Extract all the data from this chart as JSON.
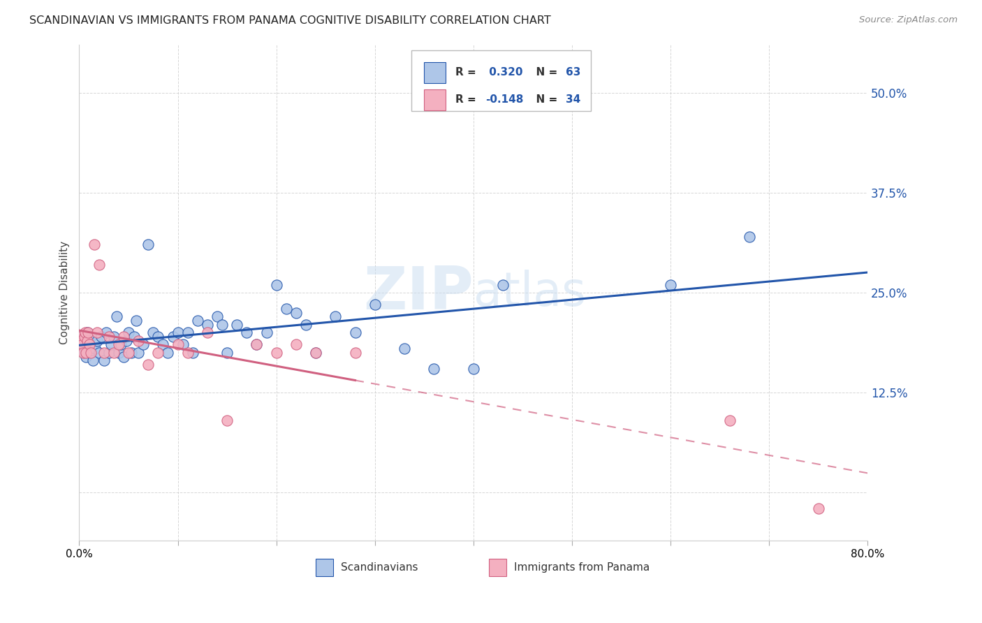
{
  "title": "SCANDINAVIAN VS IMMIGRANTS FROM PANAMA COGNITIVE DISABILITY CORRELATION CHART",
  "source": "Source: ZipAtlas.com",
  "ylabel": "Cognitive Disability",
  "watermark": "ZIPatlas",
  "xlim": [
    0.0,
    0.8
  ],
  "ylim": [
    -0.06,
    0.56
  ],
  "yticks": [
    0.0,
    0.125,
    0.25,
    0.375,
    0.5
  ],
  "ytick_labels": [
    "",
    "12.5%",
    "25.0%",
    "37.5%",
    "50.0%"
  ],
  "xticks": [
    0.0,
    0.1,
    0.2,
    0.3,
    0.4,
    0.5,
    0.6,
    0.7,
    0.8
  ],
  "xtick_labels": [
    "0.0%",
    "",
    "",
    "",
    "",
    "",
    "",
    "",
    "80.0%"
  ],
  "r_scandinavian": 0.32,
  "n_scandinavian": 63,
  "r_panama": -0.148,
  "n_panama": 34,
  "color_scandinavian": "#aec6e8",
  "color_panama": "#f4b0c0",
  "line_color_scandinavian": "#2255aa",
  "line_color_panama": "#d06080",
  "background_color": "#ffffff",
  "grid_color": "#cccccc",
  "scandinavian_x": [
    0.002,
    0.004,
    0.005,
    0.006,
    0.007,
    0.008,
    0.009,
    0.01,
    0.012,
    0.014,
    0.016,
    0.018,
    0.02,
    0.022,
    0.025,
    0.027,
    0.03,
    0.032,
    0.035,
    0.038,
    0.04,
    0.042,
    0.045,
    0.048,
    0.05,
    0.053,
    0.056,
    0.058,
    0.06,
    0.065,
    0.07,
    0.075,
    0.08,
    0.085,
    0.09,
    0.095,
    0.1,
    0.105,
    0.11,
    0.115,
    0.12,
    0.13,
    0.14,
    0.145,
    0.15,
    0.16,
    0.17,
    0.18,
    0.19,
    0.2,
    0.21,
    0.22,
    0.23,
    0.24,
    0.26,
    0.28,
    0.3,
    0.33,
    0.36,
    0.4,
    0.43,
    0.6,
    0.68
  ],
  "scandinavian_y": [
    0.195,
    0.185,
    0.175,
    0.19,
    0.17,
    0.2,
    0.185,
    0.175,
    0.195,
    0.165,
    0.18,
    0.19,
    0.175,
    0.195,
    0.165,
    0.2,
    0.175,
    0.185,
    0.195,
    0.22,
    0.175,
    0.185,
    0.17,
    0.19,
    0.2,
    0.175,
    0.195,
    0.215,
    0.175,
    0.185,
    0.31,
    0.2,
    0.195,
    0.185,
    0.175,
    0.195,
    0.2,
    0.185,
    0.2,
    0.175,
    0.215,
    0.21,
    0.22,
    0.21,
    0.175,
    0.21,
    0.2,
    0.185,
    0.2,
    0.26,
    0.23,
    0.225,
    0.21,
    0.175,
    0.22,
    0.2,
    0.235,
    0.18,
    0.155,
    0.155,
    0.26,
    0.26,
    0.32
  ],
  "panama_x": [
    0.001,
    0.002,
    0.003,
    0.004,
    0.005,
    0.006,
    0.007,
    0.008,
    0.009,
    0.01,
    0.012,
    0.015,
    0.018,
    0.02,
    0.025,
    0.03,
    0.035,
    0.04,
    0.045,
    0.05,
    0.06,
    0.07,
    0.08,
    0.1,
    0.11,
    0.13,
    0.15,
    0.18,
    0.2,
    0.22,
    0.24,
    0.28,
    0.66,
    0.75
  ],
  "panama_y": [
    0.195,
    0.19,
    0.185,
    0.175,
    0.195,
    0.2,
    0.175,
    0.19,
    0.2,
    0.185,
    0.175,
    0.31,
    0.2,
    0.285,
    0.175,
    0.195,
    0.175,
    0.185,
    0.195,
    0.175,
    0.19,
    0.16,
    0.175,
    0.185,
    0.175,
    0.2,
    0.09,
    0.185,
    0.175,
    0.185,
    0.175,
    0.175,
    0.09,
    -0.02
  ]
}
